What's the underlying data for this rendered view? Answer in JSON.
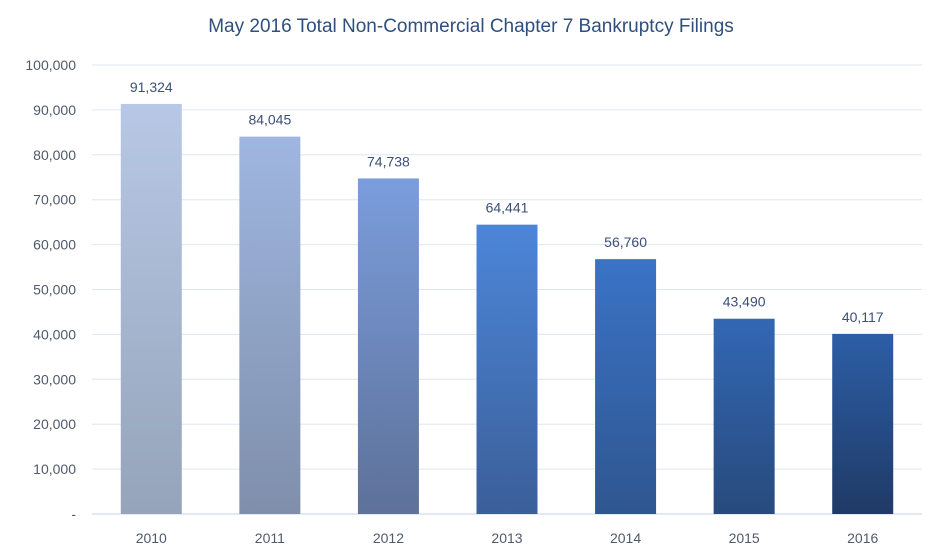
{
  "chart_data": {
    "type": "bar",
    "title": "May 2016 Total Non-Commercial Chapter 7 Bankruptcy Filings",
    "xlabel": "",
    "ylabel": "",
    "categories": [
      "2010",
      "2011",
      "2012",
      "2013",
      "2014",
      "2015",
      "2016"
    ],
    "values": [
      91324,
      84045,
      74738,
      64441,
      56760,
      43490,
      40117
    ],
    "data_labels": [
      "91,324",
      "84,045",
      "74,738",
      "64,441",
      "56,760",
      "43,490",
      "40,117"
    ],
    "ylim": [
      0,
      100000
    ],
    "y_ticks": [
      0,
      10000,
      20000,
      30000,
      40000,
      50000,
      60000,
      70000,
      80000,
      90000,
      100000
    ],
    "y_tick_labels": [
      "-",
      "10,000",
      "20,000",
      "30,000",
      "40,000",
      "50,000",
      "60,000",
      "70,000",
      "80,000",
      "90,000",
      "100,000"
    ],
    "grid": true,
    "legend": "none",
    "bar_gradients": [
      {
        "top": "#b7c8e6",
        "bottom": "#95a4b9"
      },
      {
        "top": "#9fb6e0",
        "bottom": "#7f8fab"
      },
      {
        "top": "#7b9ddc",
        "bottom": "#5d7199"
      },
      {
        "top": "#4c86d8",
        "bottom": "#3b5f99"
      },
      {
        "top": "#3a73c6",
        "bottom": "#2f5690"
      },
      {
        "top": "#3267b4",
        "bottom": "#284a7d"
      },
      {
        "top": "#2d5ea6",
        "bottom": "#1f3a66"
      }
    ]
  }
}
